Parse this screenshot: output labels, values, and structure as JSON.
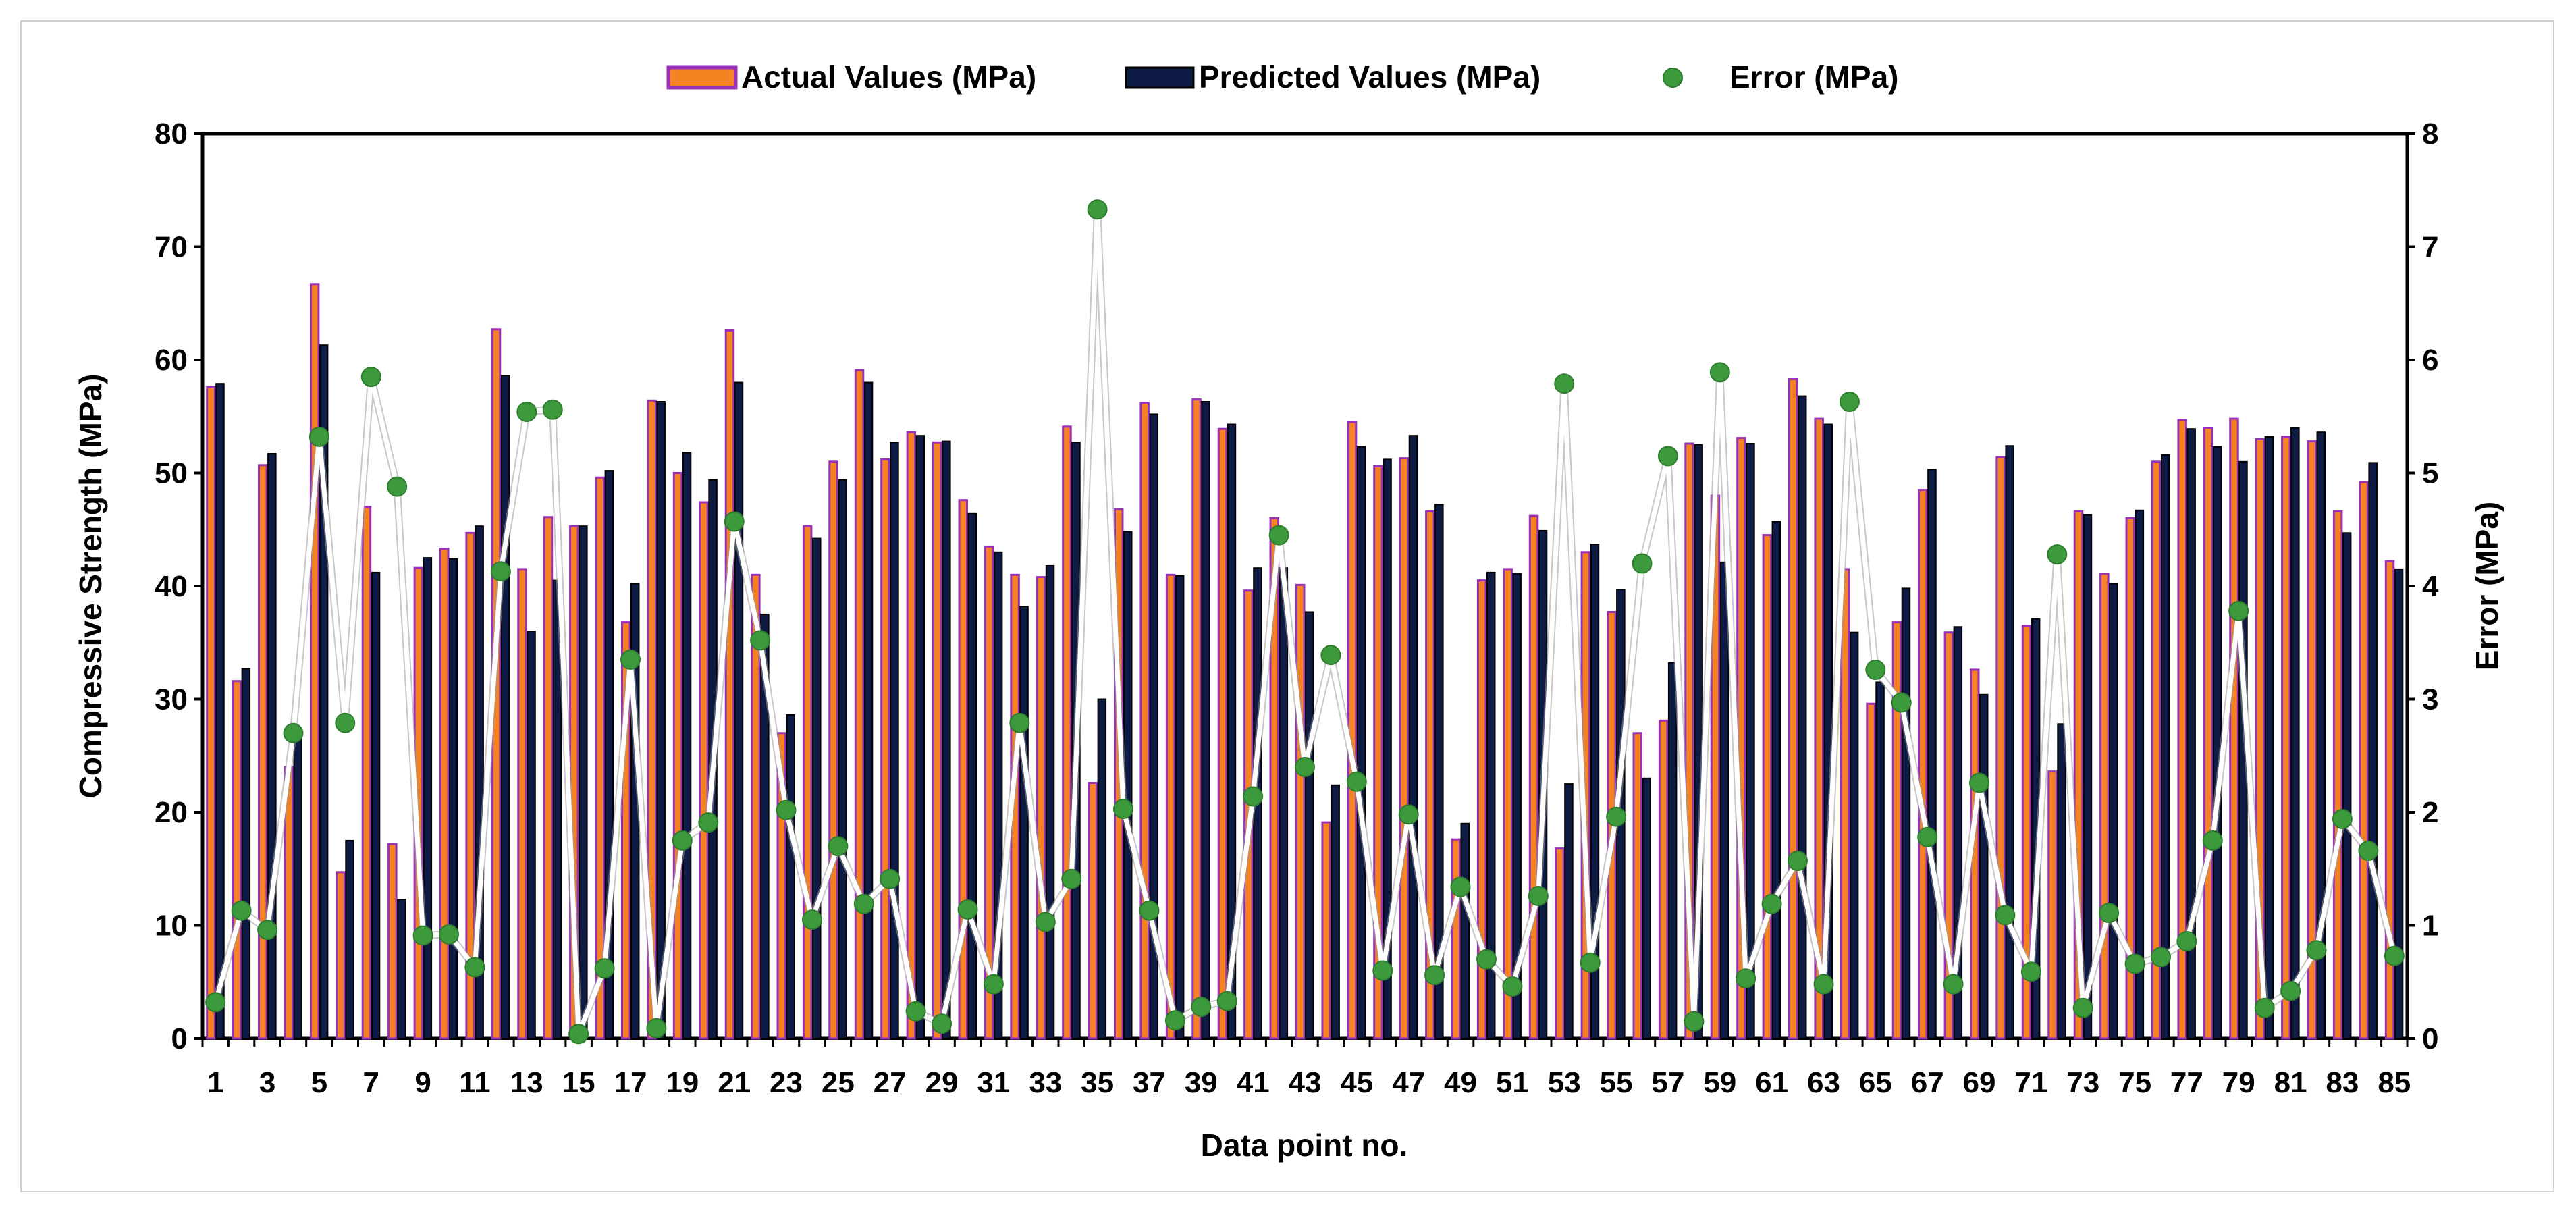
{
  "chart_data": {
    "type": "bar",
    "xlabel": "Data point no.",
    "ylabel": "Compressive Strength (MPa)",
    "y2label": "Error (MPa)",
    "ylim": [
      0,
      80
    ],
    "y2lim": [
      0,
      8
    ],
    "yticks": [
      "0",
      "10",
      "20",
      "30",
      "40",
      "50",
      "60",
      "70",
      "80"
    ],
    "y2ticks": [
      "0",
      "1",
      "2",
      "3",
      "4",
      "5",
      "6",
      "7",
      "8"
    ],
    "grid": false,
    "legend_position": "top",
    "colors": {
      "actual": "#f58220",
      "actual_edge": "#9b30b8",
      "predicted": "#0d1b45",
      "error": "#3c9a3c",
      "error_line": "#ffffff"
    },
    "x": [
      1,
      2,
      3,
      4,
      5,
      6,
      7,
      8,
      9,
      10,
      11,
      12,
      13,
      14,
      15,
      16,
      17,
      18,
      19,
      20,
      21,
      22,
      23,
      24,
      25,
      26,
      27,
      28,
      29,
      30,
      31,
      32,
      33,
      34,
      35,
      36,
      37,
      38,
      39,
      40,
      41,
      42,
      43,
      44,
      45,
      46,
      47,
      48,
      49,
      50,
      51,
      52,
      53,
      54,
      55,
      56,
      57,
      58,
      59,
      60,
      61,
      62,
      63,
      64,
      65,
      66,
      67,
      68,
      69,
      70,
      71,
      72,
      73,
      74,
      75,
      76,
      77,
      78,
      79,
      80,
      81,
      82,
      83,
      84,
      85
    ],
    "x_tick_labels": [
      "1",
      "3",
      "5",
      "7",
      "9",
      "11",
      "13",
      "15",
      "17",
      "19",
      "21",
      "23",
      "25",
      "27",
      "29",
      "31",
      "33",
      "35",
      "37",
      "39",
      "41",
      "43",
      "45",
      "47",
      "49",
      "51",
      "53",
      "55",
      "57",
      "59",
      "61",
      "63",
      "65",
      "67",
      "69",
      "71",
      "73",
      "75",
      "77",
      "79",
      "81",
      "83",
      "85"
    ],
    "series": [
      {
        "name": "Actual Values (MPa)",
        "kind": "bar",
        "values": [
          57.6,
          31.6,
          50.7,
          24.0,
          66.7,
          14.7,
          47.0,
          17.2,
          41.6,
          43.3,
          44.7,
          62.7,
          41.5,
          46.1,
          45.3,
          49.6,
          36.8,
          56.4,
          50.0,
          47.4,
          62.6,
          41.0,
          27.0,
          45.3,
          51.0,
          59.1,
          51.2,
          53.6,
          52.7,
          47.6,
          43.5,
          41.0,
          40.8,
          54.1,
          22.6,
          46.8,
          56.2,
          41.0,
          56.5,
          53.9,
          39.6,
          46.0,
          40.1,
          19.1,
          54.5,
          50.6,
          51.3,
          46.6,
          17.6,
          40.5,
          41.5,
          46.2,
          16.8,
          43.0,
          37.7,
          27.0,
          28.1,
          52.6,
          48.0,
          53.1,
          44.5,
          58.3,
          54.8,
          41.5,
          29.6,
          36.8,
          48.5,
          35.9,
          32.6,
          51.4,
          36.5,
          23.6,
          46.6,
          41.1,
          46.0,
          51.0,
          54.7,
          54.0,
          54.8,
          53.0,
          53.2,
          52.8,
          46.6,
          49.2,
          42.2
        ]
      },
      {
        "name": "Predicted Values (MPa)",
        "kind": "bar",
        "values": [
          57.9,
          32.7,
          51.7,
          26.7,
          61.3,
          17.5,
          41.2,
          12.3,
          42.5,
          42.4,
          45.3,
          58.6,
          36.0,
          40.5,
          45.3,
          50.2,
          40.2,
          56.3,
          51.8,
          49.4,
          58.0,
          37.5,
          28.6,
          44.2,
          49.4,
          58.0,
          52.7,
          53.3,
          52.8,
          46.4,
          43.0,
          38.2,
          41.8,
          52.7,
          30.0,
          44.8,
          55.2,
          40.9,
          56.3,
          54.3,
          41.6,
          41.6,
          37.7,
          22.4,
          52.3,
          51.2,
          53.3,
          47.2,
          19.0,
          41.2,
          41.1,
          44.9,
          22.5,
          43.7,
          39.7,
          23.0,
          33.2,
          52.5,
          42.1,
          52.6,
          45.7,
          56.8,
          54.3,
          35.9,
          31.5,
          39.8,
          50.3,
          36.4,
          30.4,
          52.4,
          37.1,
          27.8,
          46.3,
          40.2,
          46.7,
          51.6,
          53.9,
          52.3,
          51.0,
          53.2,
          54.0,
          53.6,
          44.7,
          50.9,
          41.5
        ]
      },
      {
        "name": "Error (MPa)",
        "kind": "scatter-line",
        "axis": "right",
        "values": [
          0.32,
          1.13,
          0.96,
          2.7,
          5.32,
          2.79,
          5.85,
          4.88,
          0.91,
          0.92,
          0.63,
          4.13,
          5.54,
          5.56,
          0.04,
          0.62,
          3.35,
          0.09,
          1.75,
          1.91,
          4.57,
          3.52,
          2.02,
          1.05,
          1.7,
          1.19,
          1.41,
          0.24,
          0.13,
          1.14,
          0.48,
          2.79,
          1.03,
          1.41,
          7.33,
          2.03,
          1.13,
          0.16,
          0.28,
          0.33,
          2.14,
          4.45,
          2.4,
          3.39,
          2.27,
          0.6,
          1.98,
          0.56,
          1.34,
          0.7,
          0.46,
          1.26,
          5.79,
          0.67,
          1.96,
          4.2,
          5.15,
          0.15,
          5.89,
          0.53,
          1.19,
          1.57,
          0.48,
          5.63,
          3.26,
          2.97,
          1.78,
          0.48,
          2.26,
          1.09,
          0.59,
          4.28,
          0.27,
          1.11,
          0.66,
          0.72,
          0.86,
          1.75,
          3.78,
          0.27,
          0.42,
          0.78,
          1.94,
          1.66,
          0.73
        ]
      }
    ]
  }
}
